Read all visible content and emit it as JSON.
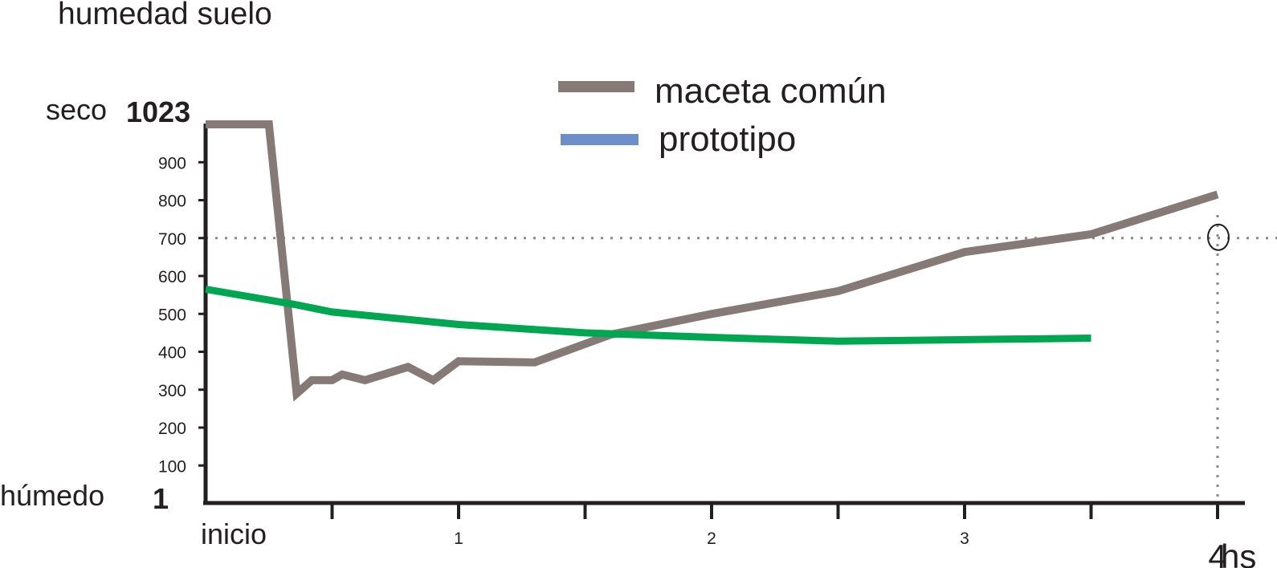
{
  "chart_data": {
    "type": "line",
    "title": "humedad suelo",
    "xlabel": "hs",
    "ylabel": "",
    "xlim": [
      0,
      4.5
    ],
    "ylim": [
      1,
      1023
    ],
    "y_top_word": "seco",
    "y_top_value": "1023",
    "y_bottom_word": "húmedo",
    "y_bottom_value": "1",
    "y_ticks": [
      "900",
      "800",
      "700",
      "600",
      "500",
      "400",
      "300",
      "200",
      "100"
    ],
    "x_tick_labels": [
      "inicio",
      "1",
      "2",
      "3",
      "4"
    ],
    "legend_position": "top-center",
    "reference_value": 700,
    "reference_time": 4,
    "series": [
      {
        "name": "maceta común",
        "legend_color": "#857a75",
        "line_color": "#857a75",
        "points": [
          [
            0,
            1000
          ],
          [
            0.25,
            1000
          ],
          [
            0.36,
            290
          ],
          [
            0.42,
            325
          ],
          [
            0.5,
            325
          ],
          [
            0.54,
            340
          ],
          [
            0.63,
            325
          ],
          [
            0.8,
            360
          ],
          [
            0.9,
            325
          ],
          [
            1.0,
            375
          ],
          [
            1.3,
            372
          ],
          [
            1.6,
            445
          ],
          [
            2.0,
            500
          ],
          [
            2.5,
            560
          ],
          [
            3.0,
            663
          ],
          [
            3.5,
            710
          ],
          [
            4.0,
            815
          ]
        ]
      },
      {
        "name": "prototipo",
        "legend_color": "#6d8ec8",
        "line_color": "#00a651",
        "points": [
          [
            0,
            565
          ],
          [
            0.35,
            525
          ],
          [
            0.5,
            505
          ],
          [
            1.0,
            472
          ],
          [
            1.5,
            450
          ],
          [
            2.0,
            438
          ],
          [
            2.5,
            428
          ],
          [
            3.0,
            432
          ],
          [
            3.5,
            436
          ]
        ]
      }
    ]
  }
}
